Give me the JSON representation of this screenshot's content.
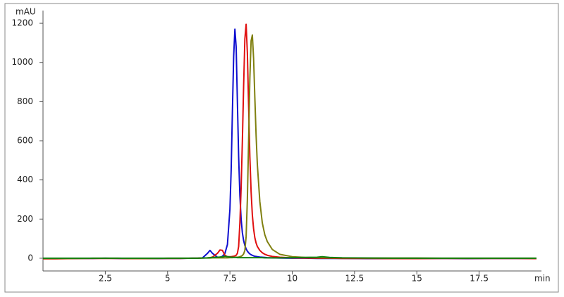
{
  "chart_data": {
    "type": "line",
    "ylabel": "mAU",
    "xlabel": "min",
    "xlim": [
      0,
      20
    ],
    "ylim": [
      -65,
      1265
    ],
    "xticks": [
      2.5,
      5,
      7.5,
      10,
      12.5,
      15,
      17.5
    ],
    "yticks": [
      0,
      200,
      400,
      600,
      800,
      1000,
      1200
    ],
    "x": [
      0,
      0.5,
      1,
      1.5,
      2,
      2.5,
      3,
      3.5,
      4,
      4.5,
      5,
      5.5,
      6,
      6.2,
      6.4,
      6.6,
      6.7,
      6.8,
      7,
      7.1,
      7.2,
      7.3,
      7.4,
      7.5,
      7.55,
      7.6,
      7.65,
      7.7,
      7.75,
      7.8,
      7.85,
      7.9,
      7.95,
      8,
      8.05,
      8.1,
      8.15,
      8.2,
      8.25,
      8.3,
      8.35,
      8.4,
      8.45,
      8.5,
      8.55,
      8.6,
      8.7,
      8.8,
      8.9,
      9,
      9.2,
      9.5,
      10,
      10.5,
      11,
      11.2,
      11.5,
      12,
      13,
      14,
      15,
      16,
      17,
      18,
      19,
      19.8
    ],
    "series": [
      {
        "color": "#1010d0",
        "values": [
          -1,
          -2,
          -2,
          -1,
          -1,
          0,
          -1,
          -2,
          -2,
          -2,
          -1,
          -1,
          0,
          0,
          2,
          25,
          40,
          25,
          5,
          5,
          10,
          25,
          70,
          250,
          450,
          750,
          1030,
          1170,
          1080,
          800,
          520,
          320,
          200,
          130,
          90,
          65,
          48,
          36,
          28,
          22,
          18,
          15,
          12,
          10,
          9,
          8,
          6,
          5,
          4,
          3,
          2,
          1,
          0,
          0,
          -1,
          -1,
          -1,
          -1,
          -2,
          -2,
          -1,
          -1,
          -2,
          -1,
          -1,
          -1
        ]
      },
      {
        "color": "#e01010",
        "values": [
          -3,
          -3,
          -2,
          -1,
          -1,
          -1,
          -1,
          -2,
          -2,
          -1,
          -1,
          -1,
          0,
          0,
          1,
          2,
          3,
          6,
          25,
          42,
          40,
          15,
          8,
          8,
          8,
          9,
          10,
          12,
          15,
          25,
          60,
          180,
          360,
          600,
          880,
          1120,
          1195,
          1050,
          780,
          520,
          340,
          220,
          150,
          105,
          78,
          60,
          40,
          28,
          20,
          15,
          9,
          5,
          2,
          1,
          0,
          0,
          0,
          -1,
          -1,
          -2,
          -2,
          -1,
          -1,
          -1,
          -1,
          -2
        ]
      },
      {
        "color": "#808010",
        "values": [
          -1,
          -1,
          -1,
          -1,
          0,
          0,
          0,
          -1,
          -1,
          -1,
          0,
          0,
          0,
          0,
          1,
          1,
          1,
          2,
          2,
          2,
          2,
          2,
          2,
          3,
          3,
          3,
          4,
          4,
          5,
          5,
          6,
          8,
          10,
          14,
          22,
          40,
          110,
          300,
          600,
          920,
          1110,
          1140,
          1020,
          820,
          630,
          480,
          290,
          180,
          120,
          85,
          45,
          20,
          8,
          4,
          3,
          3,
          2,
          2,
          1,
          1,
          1,
          0,
          0,
          0,
          0,
          0
        ]
      },
      {
        "color": "#108010",
        "values": [
          0,
          0,
          0,
          0,
          0,
          0,
          0,
          0,
          0,
          0,
          0,
          0,
          0,
          0,
          1,
          2,
          3,
          4,
          5,
          6,
          7,
          10,
          8,
          6,
          5,
          5,
          4,
          4,
          4,
          3,
          3,
          3,
          3,
          3,
          3,
          3,
          3,
          3,
          3,
          3,
          3,
          3,
          3,
          3,
          3,
          3,
          3,
          3,
          2,
          2,
          2,
          2,
          3,
          4,
          5,
          8,
          4,
          2,
          1,
          0,
          0,
          0,
          0,
          0,
          0,
          0
        ]
      }
    ]
  }
}
